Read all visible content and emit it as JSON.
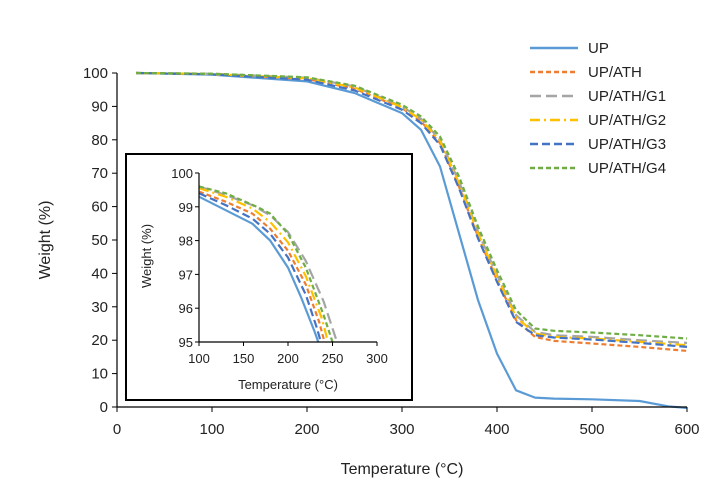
{
  "chart_data": [
    {
      "type": "line",
      "id": "main",
      "xlabel": "Temperature (°C)",
      "ylabel": "Weight (%)",
      "xlim": [
        0,
        600
      ],
      "ylim": [
        0,
        100
      ],
      "xticks": [
        0,
        100,
        200,
        300,
        400,
        500,
        600
      ],
      "yticks": [
        0,
        10,
        20,
        30,
        40,
        50,
        60,
        70,
        80,
        90,
        100
      ],
      "legend_position": "top-right",
      "series": [
        {
          "name": "UP",
          "color": "#5b9bd5",
          "dash": "solid",
          "x": [
            20,
            100,
            200,
            250,
            300,
            320,
            340,
            360,
            380,
            400,
            420,
            440,
            460,
            500,
            550,
            580,
            600
          ],
          "y": [
            100,
            99.5,
            97.5,
            94,
            88,
            83,
            72,
            52,
            32,
            16,
            5,
            2.8,
            2.5,
            2.3,
            1.8,
            0.2,
            -0.3
          ]
        },
        {
          "name": "UP/ATH",
          "color": "#ed7d31",
          "dash": "short-dash",
          "x": [
            20,
            100,
            200,
            250,
            300,
            320,
            340,
            360,
            380,
            400,
            420,
            440,
            460,
            500,
            550,
            600
          ],
          "y": [
            100,
            99.7,
            98.2,
            95.3,
            89.5,
            85.5,
            79,
            66,
            51,
            38,
            26,
            21,
            19.8,
            19,
            18,
            16.8
          ]
        },
        {
          "name": "UP/ATH/G1",
          "color": "#a5a5a5",
          "dash": "long-dash",
          "x": [
            20,
            100,
            200,
            250,
            300,
            320,
            340,
            360,
            380,
            400,
            420,
            440,
            460,
            500,
            550,
            600
          ],
          "y": [
            100,
            99.8,
            98.6,
            96,
            90,
            86.3,
            80,
            67.5,
            52.5,
            39.5,
            27.5,
            22.5,
            21.5,
            21,
            20,
            19.2
          ]
        },
        {
          "name": "UP/ATH/G2",
          "color": "#ffc000",
          "dash": "dash-dot",
          "x": [
            20,
            100,
            200,
            250,
            300,
            320,
            340,
            360,
            380,
            400,
            420,
            440,
            460,
            500,
            550,
            600
          ],
          "y": [
            100,
            99.7,
            98.4,
            95.7,
            89.8,
            86,
            79.8,
            67,
            52,
            39,
            27,
            22,
            21,
            20.5,
            19.5,
            18.5
          ]
        },
        {
          "name": "UP/ATH/G3",
          "color": "#4472c4",
          "dash": "medium-dash",
          "x": [
            20,
            100,
            200,
            250,
            300,
            320,
            340,
            360,
            380,
            400,
            420,
            440,
            460,
            500,
            550,
            600
          ],
          "y": [
            100,
            99.6,
            98,
            94.8,
            89,
            85,
            78.5,
            65.5,
            50.5,
            37.5,
            25.5,
            21.5,
            20.8,
            20.2,
            19.2,
            18
          ]
        },
        {
          "name": "UP/ATH/G4",
          "color": "#70ad47",
          "dash": "short-dash",
          "x": [
            20,
            100,
            200,
            250,
            300,
            320,
            340,
            360,
            380,
            400,
            420,
            440,
            460,
            500,
            550,
            600
          ],
          "y": [
            100,
            99.8,
            98.7,
            96.2,
            90.5,
            87,
            81,
            69,
            54,
            41,
            29,
            23.5,
            22.8,
            22.3,
            21.5,
            20.5
          ]
        }
      ]
    },
    {
      "type": "line",
      "id": "inset",
      "xlabel": "Temperature (°C)",
      "ylabel": "Weight (%)",
      "xlim": [
        100,
        300
      ],
      "ylim": [
        95,
        100
      ],
      "xticks": [
        100,
        150,
        200,
        250,
        300
      ],
      "yticks": [
        95,
        96,
        97,
        98,
        99,
        100
      ],
      "series": [
        {
          "name": "UP",
          "x": [
            100,
            130,
            160,
            180,
            200,
            215,
            230,
            234
          ],
          "y": [
            99.3,
            98.9,
            98.5,
            98.0,
            97.2,
            96.3,
            95.3,
            95
          ]
        },
        {
          "name": "UP/ATH",
          "x": [
            100,
            130,
            160,
            180,
            200,
            220,
            235,
            241
          ],
          "y": [
            99.45,
            99.15,
            98.8,
            98.35,
            97.7,
            96.7,
            95.6,
            95
          ]
        },
        {
          "name": "UP/ATH/G1",
          "x": [
            100,
            130,
            160,
            180,
            200,
            220,
            240,
            255
          ],
          "y": [
            99.6,
            99.35,
            99.05,
            98.75,
            98.25,
            97.4,
            96.2,
            95
          ]
        },
        {
          "name": "UP/ATH/G2",
          "x": [
            100,
            130,
            160,
            180,
            200,
            220,
            238,
            245
          ],
          "y": [
            99.55,
            99.3,
            98.95,
            98.55,
            97.95,
            96.95,
            95.7,
            95
          ]
        },
        {
          "name": "UP/ATH/G3",
          "x": [
            100,
            130,
            160,
            180,
            200,
            220,
            232,
            237
          ],
          "y": [
            99.4,
            99.05,
            98.65,
            98.2,
            97.5,
            96.4,
            95.45,
            95
          ]
        },
        {
          "name": "UP/ATH/G4",
          "x": [
            100,
            130,
            165,
            180,
            200,
            220,
            240,
            250
          ],
          "y": [
            99.6,
            99.4,
            99.0,
            98.8,
            98.2,
            97.2,
            95.8,
            95
          ]
        }
      ]
    }
  ]
}
